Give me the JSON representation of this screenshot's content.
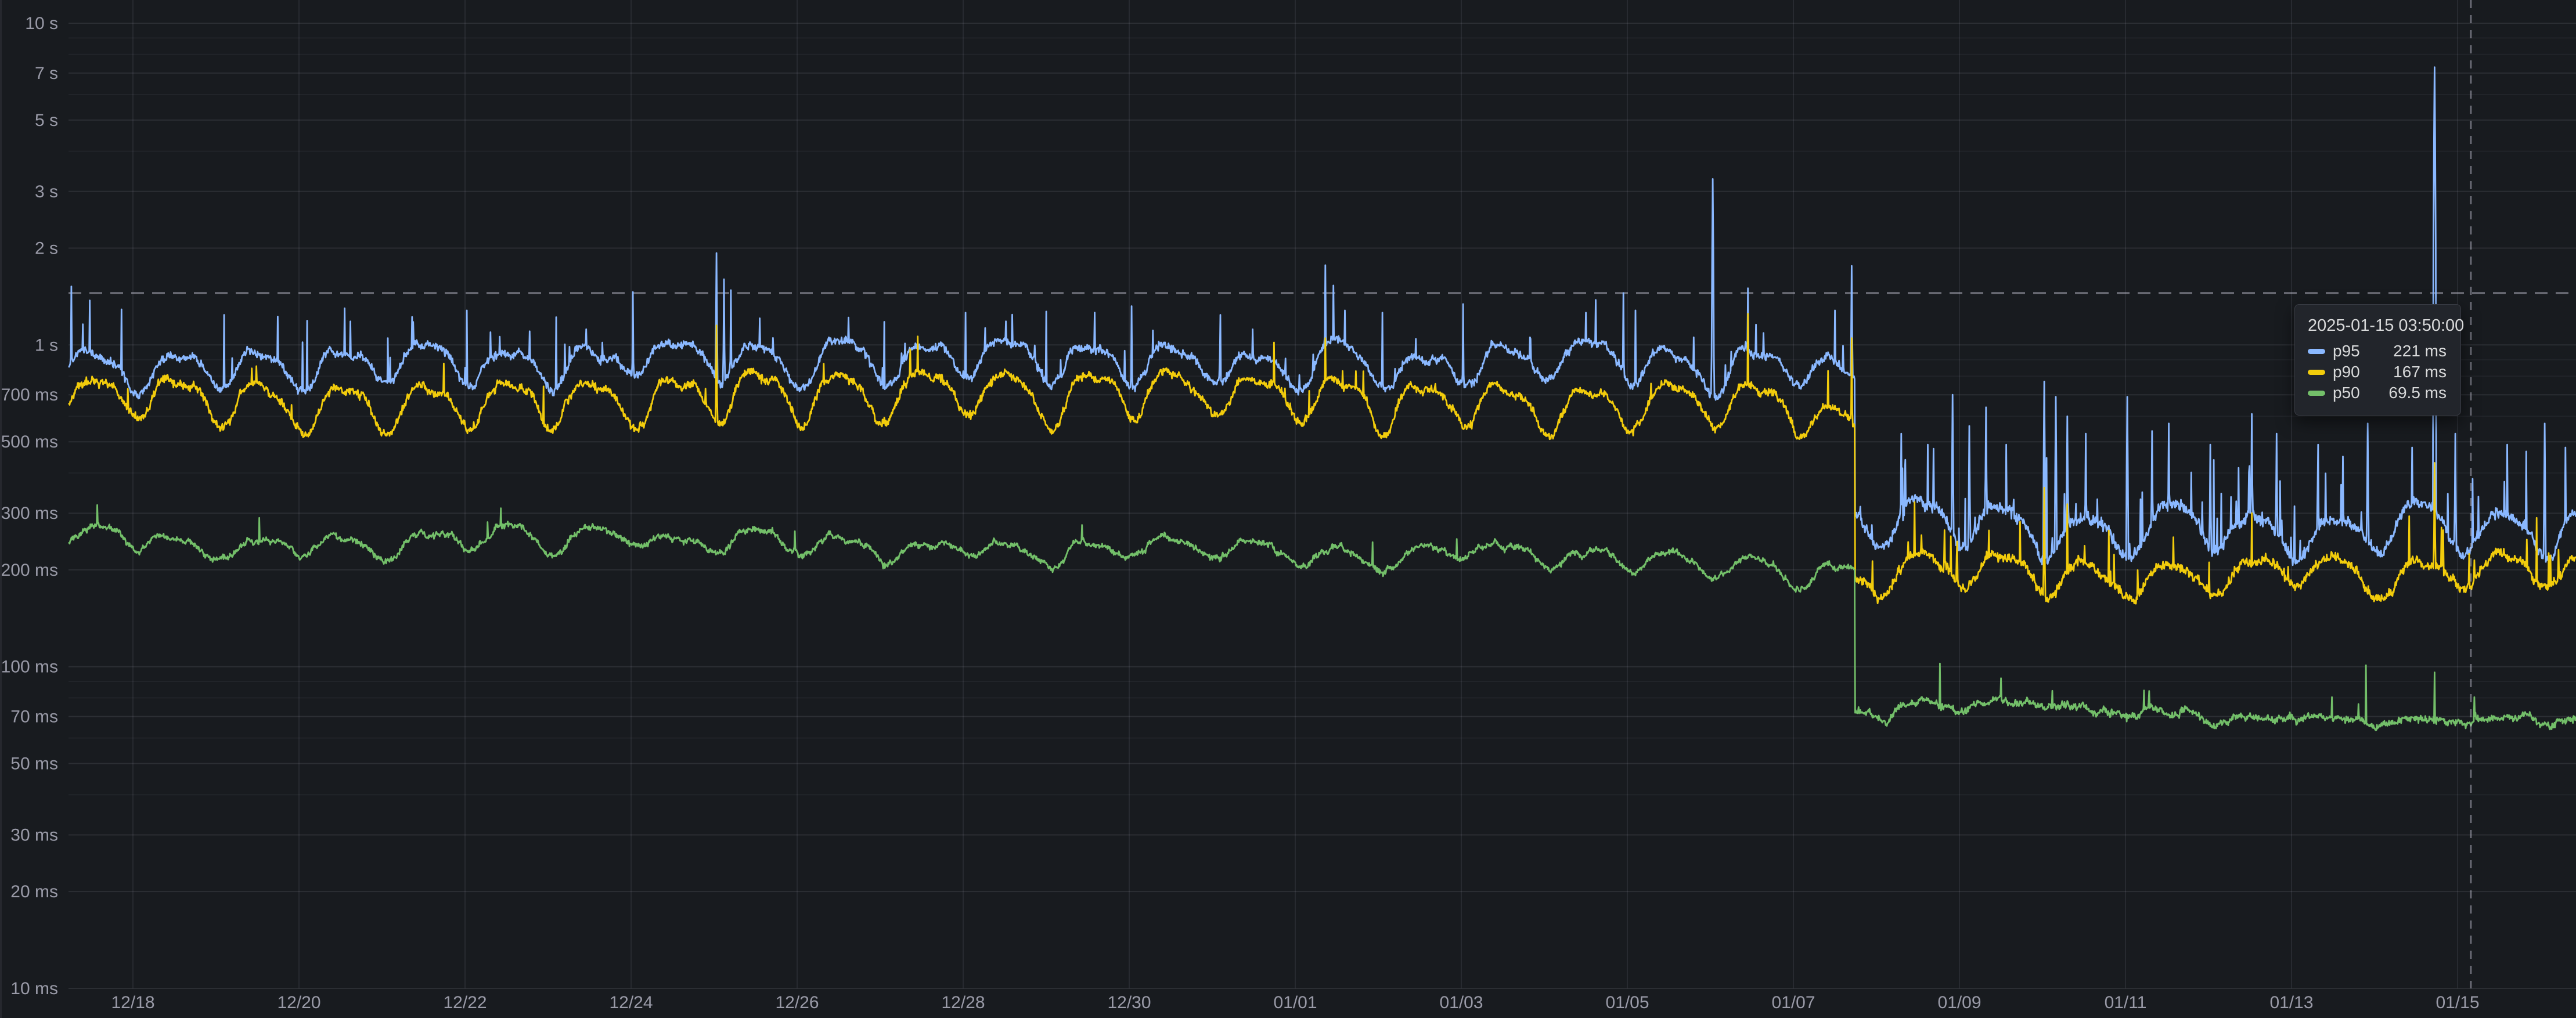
{
  "panel": {
    "background_color": "#181b1f",
    "grid_major_color": "rgba(204,204,220,0.11)",
    "grid_minor_color": "rgba(204,204,220,0.055)",
    "grid_vertical_color": "rgba(204,204,220,0.09)",
    "axis_text_color": "rgba(204,204,220,0.72)"
  },
  "chart_data": {
    "type": "line",
    "y_axis": {
      "scale": "log10",
      "unit": "ms",
      "range_ms": [
        10,
        10000
      ],
      "ticks": [
        {
          "label": "10 s",
          "ms": 10000
        },
        {
          "label": "7 s",
          "ms": 7000
        },
        {
          "label": "5 s",
          "ms": 5000
        },
        {
          "label": "3 s",
          "ms": 3000
        },
        {
          "label": "2 s",
          "ms": 2000
        },
        {
          "label": "1 s",
          "ms": 1000
        },
        {
          "label": "700 ms",
          "ms": 700
        },
        {
          "label": "500 ms",
          "ms": 500
        },
        {
          "label": "300 ms",
          "ms": 300
        },
        {
          "label": "200 ms",
          "ms": 200
        },
        {
          "label": "100 ms",
          "ms": 100
        },
        {
          "label": "70 ms",
          "ms": 70
        },
        {
          "label": "50 ms",
          "ms": 50
        },
        {
          "label": "30 ms",
          "ms": 30
        },
        {
          "label": "20 ms",
          "ms": 20
        },
        {
          "label": "10 ms",
          "ms": 10
        }
      ],
      "minor_ticks_ms": [
        9000,
        8000,
        6000,
        4000,
        900,
        800,
        600,
        400,
        90,
        80,
        60,
        40
      ]
    },
    "x_axis": {
      "ticks": [
        {
          "label": "12/18",
          "day": 1
        },
        {
          "label": "12/20",
          "day": 3
        },
        {
          "label": "12/22",
          "day": 5
        },
        {
          "label": "12/24",
          "day": 7
        },
        {
          "label": "12/26",
          "day": 9
        },
        {
          "label": "12/28",
          "day": 11
        },
        {
          "label": "12/30",
          "day": 13
        },
        {
          "label": "01/01",
          "day": 15
        },
        {
          "label": "01/03",
          "day": 17
        },
        {
          "label": "01/05",
          "day": 19
        },
        {
          "label": "01/07",
          "day": 21
        },
        {
          "label": "01/09",
          "day": 23
        },
        {
          "label": "01/11",
          "day": 25
        },
        {
          "label": "01/13",
          "day": 27
        },
        {
          "label": "01/15",
          "day": 29
        }
      ]
    },
    "time": {
      "start_day": 0.23,
      "end_day": 30.43,
      "step_change_day": 21.74
    },
    "threshold": {
      "value_ms": 1450,
      "style": "dashed"
    },
    "crosshair": {
      "time_day": 29.16
    },
    "series": [
      {
        "name": "p95",
        "color": "#8AB8FF",
        "width": 2.8,
        "seed": 101,
        "pre": {
          "baseline_ms": 880,
          "daily_amp_log": 0.055,
          "harmonic_log": 0.019,
          "jitter_log": 0.011,
          "spike_prob": 0.012,
          "spike_amp_log": 0.14,
          "decline_start_day": 20.9,
          "decline_log": 0.09
        },
        "post": {
          "baseline_ms": 272,
          "daily_amp_log": 0.063,
          "harmonic_log": 0.014,
          "jitter_log": 0.016,
          "spike_prob": 0.04,
          "spike_amp_log": 0.3
        },
        "spikes": [
          [
            0.26,
            1520
          ],
          [
            0.4,
            1160
          ],
          [
            0.86,
            1290
          ],
          [
            2.1,
            1240
          ],
          [
            3.1,
            1190
          ],
          [
            3.55,
            1300
          ],
          [
            5.02,
            1280
          ],
          [
            6.1,
            1220
          ],
          [
            7.02,
            1460
          ],
          [
            8.03,
            1930
          ],
          [
            8.12,
            1600
          ],
          [
            8.2,
            1480
          ],
          [
            8.55,
            1210
          ],
          [
            10.05,
            1180
          ],
          [
            11.03,
            1260
          ],
          [
            12.0,
            1270
          ],
          [
            13.03,
            1320
          ],
          [
            14.1,
            1240
          ],
          [
            15.36,
            1770
          ],
          [
            15.46,
            1530
          ],
          [
            15.6,
            1280
          ],
          [
            16.05,
            1260
          ],
          [
            17.02,
            1340
          ],
          [
            18.5,
            1260
          ],
          [
            18.62,
            1380
          ],
          [
            18.95,
            1450
          ],
          [
            19.1,
            1280
          ],
          [
            20.03,
            3280
          ],
          [
            20.45,
            1500
          ],
          [
            21.5,
            1280
          ],
          [
            21.7,
            1760
          ],
          [
            22.3,
            530
          ],
          [
            22.62,
            490
          ],
          [
            22.92,
            700
          ],
          [
            23.12,
            560
          ],
          [
            23.32,
            640
          ],
          [
            23.56,
            490
          ],
          [
            24.02,
            770
          ],
          [
            24.16,
            690
          ],
          [
            24.3,
            600
          ],
          [
            24.52,
            530
          ],
          [
            25.02,
            690
          ],
          [
            25.32,
            540
          ],
          [
            25.52,
            570
          ],
          [
            26.02,
            490
          ],
          [
            26.52,
            610
          ],
          [
            26.82,
            530
          ],
          [
            27.32,
            490
          ],
          [
            27.62,
            450
          ],
          [
            27.92,
            570
          ],
          [
            28.45,
            480
          ],
          [
            28.72,
            7300
          ],
          [
            28.97,
            530
          ],
          [
            29.6,
            490
          ],
          [
            30.05,
            570
          ],
          [
            30.3,
            480
          ]
        ]
      },
      {
        "name": "p90",
        "color": "#F2CC0C",
        "width": 2.8,
        "seed": 202,
        "pre": {
          "baseline_ms": 685,
          "daily_amp_log": 0.066,
          "harmonic_log": 0.023,
          "jitter_log": 0.011,
          "spike_prob": 0.008,
          "spike_amp_log": 0.1,
          "decline_start_day": 20.9,
          "decline_log": 0.1
        },
        "post": {
          "baseline_ms": 192,
          "daily_amp_log": 0.052,
          "harmonic_log": 0.012,
          "jitter_log": 0.013,
          "spike_prob": 0.022,
          "spike_amp_log": 0.16
        },
        "spikes": [
          [
            8.03,
            1150
          ],
          [
            15.36,
            1050
          ],
          [
            20.45,
            1250
          ],
          [
            21.7,
            1050
          ],
          [
            24.02,
            360
          ],
          [
            24.3,
            320
          ],
          [
            26.52,
            300
          ],
          [
            28.72,
            430
          ],
          [
            29.95,
            290
          ]
        ]
      },
      {
        "name": "p50",
        "color": "#73BF69",
        "width": 2.8,
        "seed": 303,
        "pre": {
          "baseline_ms": 244,
          "daily_amp_log": 0.029,
          "harmonic_log": 0.008,
          "jitter_log": 0.007,
          "spike_prob": 0.004,
          "spike_amp_log": 0.05,
          "decline_start_day": 19.8,
          "decline_log": 0.06,
          "drift_log": -0.04
        },
        "post": {
          "baseline_ms": 72.5,
          "daily_amp_log": 0.013,
          "harmonic_log": 0.004,
          "jitter_log": 0.009,
          "spike_prob": 0.006,
          "spike_amp_log": 0.1
        },
        "spikes": [
          [
            27.9,
            101
          ],
          [
            28.72,
            96
          ]
        ]
      }
    ],
    "tooltip": {
      "timestamp": "2025-01-15 03:50:00",
      "rows": [
        {
          "series": "p95",
          "value": "221 ms",
          "color": "#8AB8FF"
        },
        {
          "series": "p90",
          "value": "167 ms",
          "color": "#F2CC0C"
        },
        {
          "series": "p50",
          "value": "69.5 ms",
          "color": "#73BF69"
        }
      ]
    }
  }
}
